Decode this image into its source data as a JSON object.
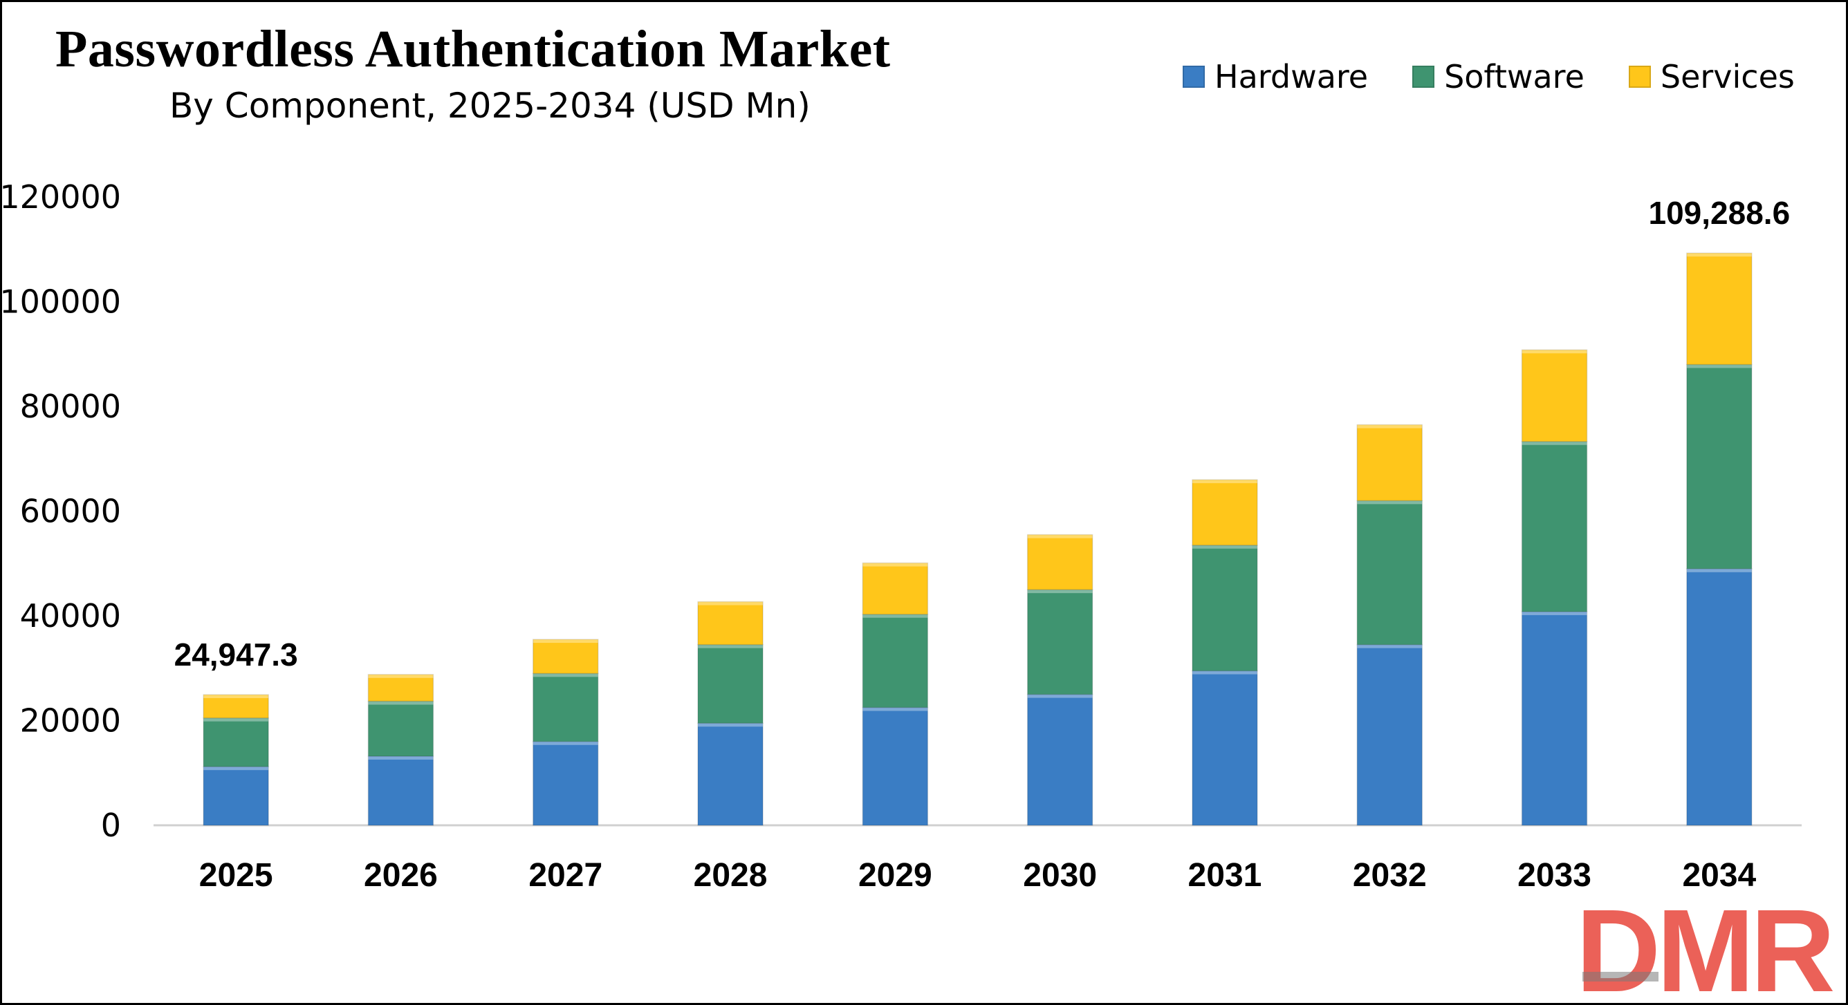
{
  "chart_data": {
    "type": "bar",
    "stacked": true,
    "title": "Passwordless Authentication Market",
    "subtitle": "By Component, 2025-2034 (USD Mn)",
    "categories": [
      "2025",
      "2026",
      "2027",
      "2028",
      "2029",
      "2030",
      "2031",
      "2032",
      "2033",
      "2034"
    ],
    "series": [
      {
        "name": "Hardware",
        "color": "#3A7DC4",
        "values": [
          11200,
          13200,
          16000,
          19500,
          22500,
          25000,
          29500,
          34500,
          40800,
          49000
        ]
      },
      {
        "name": "Software",
        "color": "#3F9470",
        "values": [
          9300,
          10500,
          13000,
          15000,
          17800,
          20000,
          24000,
          27500,
          32500,
          39000
        ]
      },
      {
        "name": "Services",
        "color": "#FFC61A",
        "values": [
          4447.3,
          5100,
          6500,
          8200,
          9800,
          10500,
          12500,
          14500,
          17500,
          21288.6
        ]
      }
    ],
    "yticks": [
      "0",
      "20000",
      "40000",
      "60000",
      "80000",
      "100000",
      "120000"
    ],
    "ylim": [
      0,
      120000
    ],
    "annotations": [
      {
        "category": "2025",
        "label": "24,947.3"
      },
      {
        "category": "2034",
        "label": "109,288.6"
      }
    ],
    "legend_position": "top-right",
    "grid": false
  },
  "logo": {
    "text": "DMR",
    "color": "#E8463C"
  }
}
